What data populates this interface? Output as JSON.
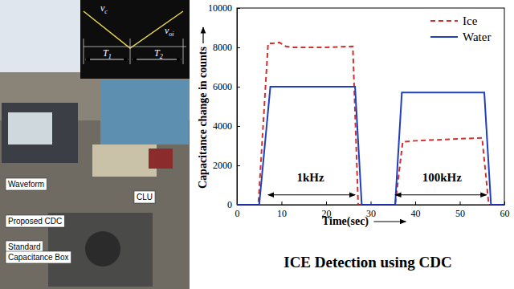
{
  "chart_data": {
    "type": "line",
    "title": "ICE Detection using CDC",
    "x_label": "Time(sec)",
    "y_label": "Capacitance change in counts",
    "xlim": [
      0,
      60
    ],
    "xticks": [
      0,
      10,
      20,
      30,
      40,
      50,
      60
    ],
    "ylim": [
      0,
      10000
    ],
    "yticks": [
      0,
      2000,
      4000,
      6000,
      8000,
      10000
    ],
    "legend": "upper right",
    "grid": false,
    "series": [
      {
        "name": "Ice",
        "color": "#d0312d",
        "line_style": "dashed",
        "x": [
          0,
          4.8,
          7,
          8,
          9.5,
          11,
          12.5,
          20,
          26,
          27.2,
          28,
          35,
          35.5,
          37.2,
          40,
          45,
          50,
          55,
          56.5,
          60
        ],
        "values": [
          0,
          0,
          8200,
          8200,
          8250,
          8050,
          8000,
          8000,
          8050,
          0,
          0,
          0,
          0,
          3200,
          3250,
          3300,
          3350,
          3400,
          0,
          0
        ]
      },
      {
        "name": "Water",
        "color": "#1f3fbf",
        "line_style": "solid",
        "x": [
          0,
          5,
          7.5,
          10,
          20,
          25,
          26.5,
          28,
          35,
          35.5,
          37,
          45,
          55,
          55.5,
          57,
          60
        ],
        "values": [
          0,
          0,
          6000,
          6000,
          6000,
          6000,
          6000,
          0,
          0,
          0,
          5700,
          5700,
          5700,
          5700,
          0,
          0
        ]
      }
    ],
    "annotations": [
      {
        "text": "1kHz",
        "x": 16.5,
        "y": 1200,
        "arrow": [
          7,
          26.5
        ],
        "arrow_y": 500
      },
      {
        "text": "100kHz",
        "x": 46,
        "y": 1200,
        "arrow": [
          35.5,
          56
        ],
        "arrow_y": 500
      }
    ]
  },
  "photo": {
    "labels": [
      "Waveform",
      "Proposed CDC",
      "CLU",
      "Standard",
      "Capacitance Box"
    ],
    "inset_labels": [
      {
        "text": "v",
        "sub": "c"
      },
      {
        "text": "v",
        "sub": "oi"
      },
      {
        "text": "T",
        "sub": "1"
      },
      {
        "text": "T",
        "sub": "2"
      }
    ]
  }
}
